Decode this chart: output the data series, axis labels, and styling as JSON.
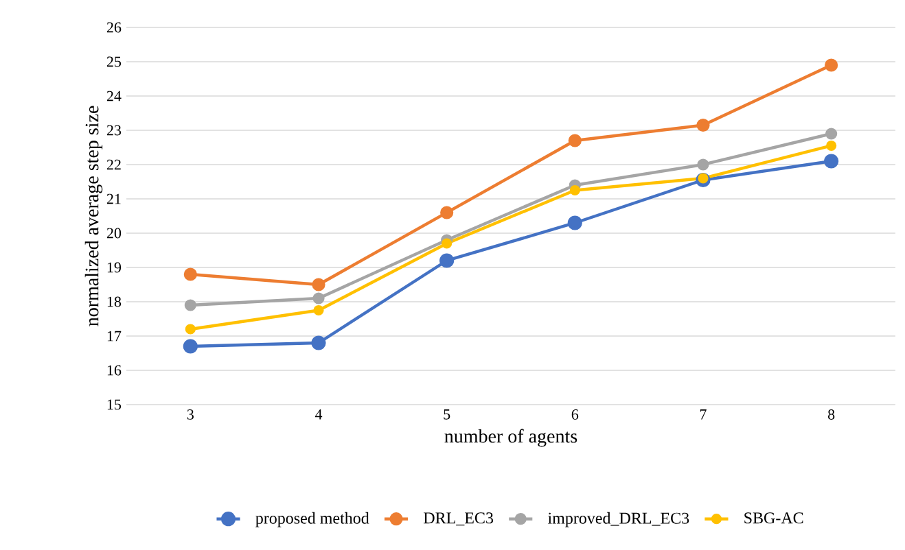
{
  "chart_data": {
    "type": "line",
    "xlabel": "number  of agents",
    "ylabel": "normalized  average  step size",
    "categories": [
      "3",
      "4",
      "5",
      "6",
      "7",
      "8"
    ],
    "series": [
      {
        "name": "proposed method",
        "color": "#4472c4",
        "values": [
          16.7,
          16.8,
          19.2,
          20.3,
          21.55,
          22.1
        ]
      },
      {
        "name": "DRL_EC3",
        "color": "#ed7d31",
        "values": [
          18.8,
          18.5,
          20.6,
          22.7,
          23.15,
          24.9
        ]
      },
      {
        "name": "improved_DRL_EC3",
        "color": "#a5a5a5",
        "values": [
          17.9,
          18.1,
          19.8,
          21.4,
          22.0,
          22.9
        ]
      },
      {
        "name": "SBG-AC",
        "color": "#ffc000",
        "values": [
          17.2,
          17.75,
          19.7,
          21.25,
          21.6,
          22.55
        ]
      }
    ],
    "ylim": [
      15,
      26
    ],
    "yticks": [
      15,
      16,
      17,
      18,
      19,
      20,
      21,
      22,
      23,
      24,
      25,
      26
    ],
    "grid": "y",
    "legend": "bottom",
    "marker": "circle",
    "line_style": "solid"
  }
}
